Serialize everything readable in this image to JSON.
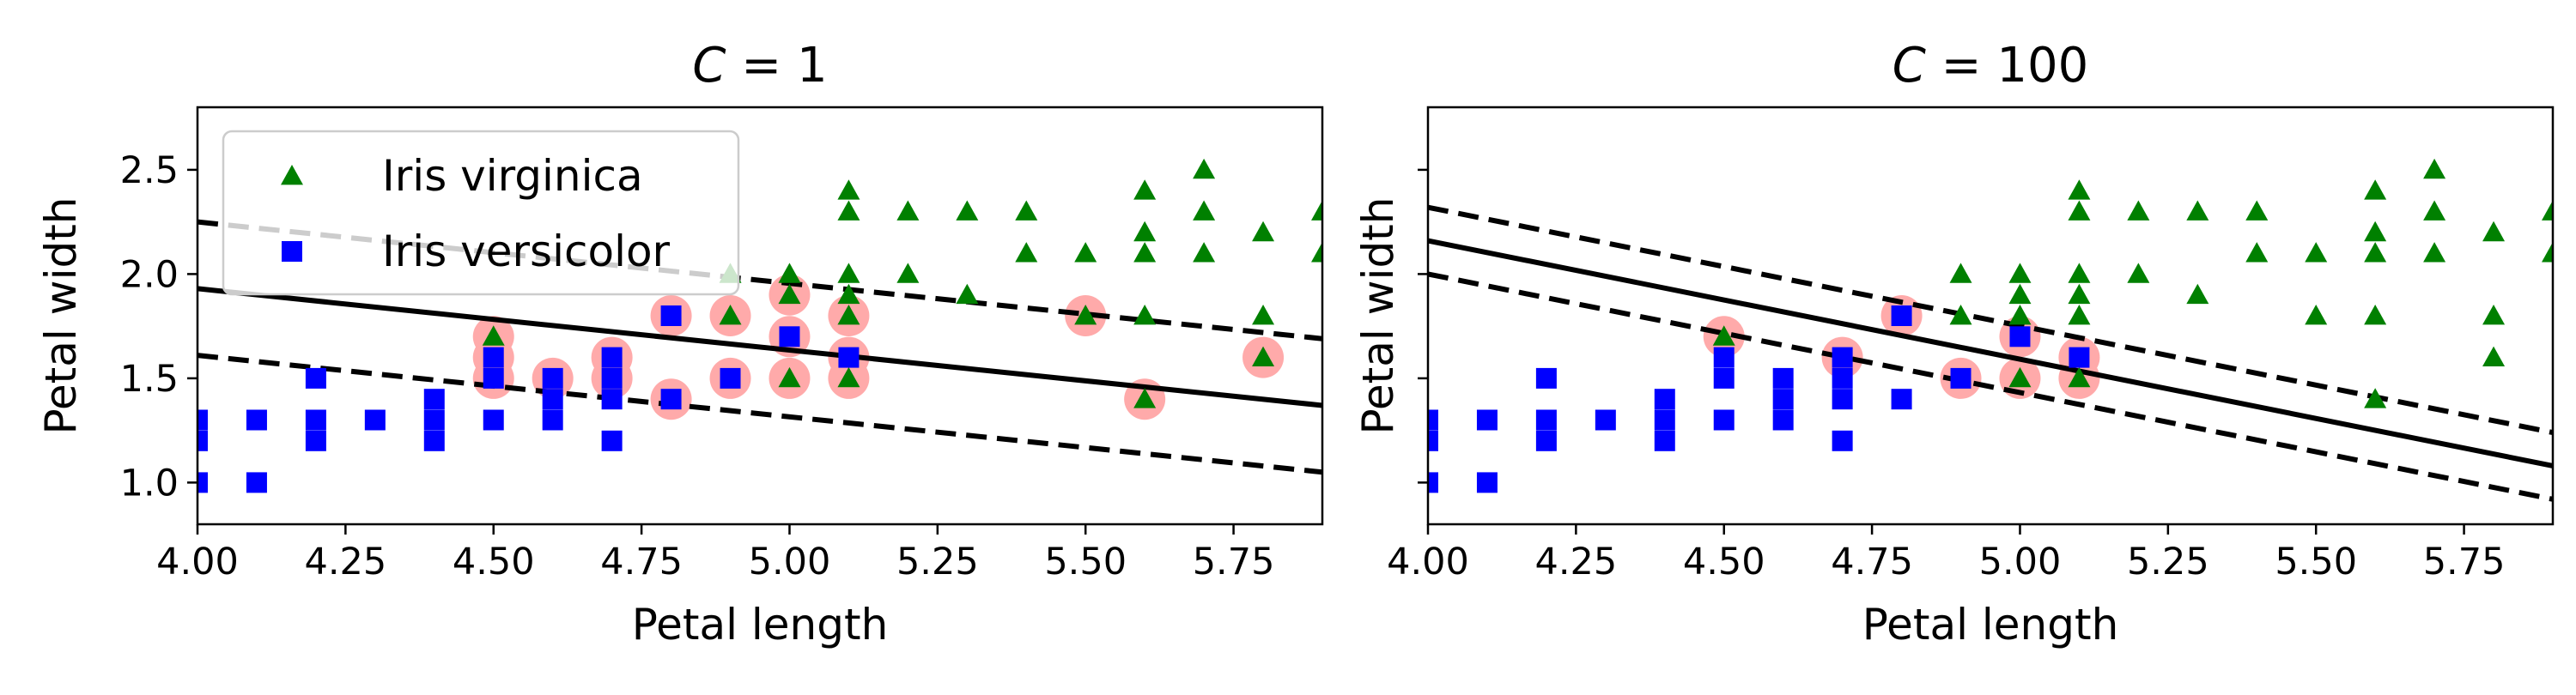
{
  "chart_data": [
    {
      "type": "scatter",
      "title": "C = 1",
      "title_var": "C",
      "title_value": "1",
      "xlabel": "Petal length",
      "ylabel": "Petal width",
      "xlim": [
        4.0,
        5.9
      ],
      "ylim": [
        0.8,
        2.8
      ],
      "xticks": [
        4.0,
        4.25,
        4.5,
        4.75,
        5.0,
        5.25,
        5.5,
        5.75
      ],
      "xtick_labels": [
        "4.00",
        "4.25",
        "4.50",
        "4.75",
        "5.00",
        "5.25",
        "5.50",
        "5.75"
      ],
      "yticks": [
        1.0,
        1.5,
        2.0,
        2.5
      ],
      "ytick_labels": [
        "1.0",
        "1.5",
        "2.0",
        "2.5"
      ],
      "legend": {
        "placement": "upper-left",
        "entries": [
          {
            "label": "Iris virginica",
            "marker": "triangle",
            "color": "#008000"
          },
          {
            "label": "Iris versicolor",
            "marker": "square",
            "color": "#0000ff"
          }
        ]
      },
      "series": [
        {
          "name": "Iris virginica",
          "marker": "triangle",
          "color": "#008000",
          "points": [
            [
              4.5,
              1.7
            ],
            [
              4.9,
              1.8
            ],
            [
              4.9,
              2.0
            ],
            [
              5.0,
              1.5
            ],
            [
              5.0,
              2.0
            ],
            [
              5.0,
              1.9
            ],
            [
              5.1,
              1.5
            ],
            [
              5.1,
              1.8
            ],
            [
              5.1,
              1.9
            ],
            [
              5.1,
              2.0
            ],
            [
              5.1,
              2.3
            ],
            [
              5.1,
              2.4
            ],
            [
              5.2,
              2.0
            ],
            [
              5.2,
              2.3
            ],
            [
              5.3,
              1.9
            ],
            [
              5.3,
              2.3
            ],
            [
              5.4,
              2.1
            ],
            [
              5.4,
              2.3
            ],
            [
              5.5,
              1.8
            ],
            [
              5.5,
              2.1
            ],
            [
              5.6,
              1.4
            ],
            [
              5.6,
              1.8
            ],
            [
              5.6,
              2.1
            ],
            [
              5.6,
              2.2
            ],
            [
              5.6,
              2.4
            ],
            [
              5.7,
              2.1
            ],
            [
              5.7,
              2.3
            ],
            [
              5.7,
              2.5
            ],
            [
              5.8,
              1.6
            ],
            [
              5.8,
              1.8
            ],
            [
              5.8,
              2.2
            ],
            [
              5.9,
              2.1
            ],
            [
              5.9,
              2.3
            ]
          ]
        },
        {
          "name": "Iris versicolor",
          "marker": "square",
          "color": "#0000ff",
          "points": [
            [
              4.0,
              1.0
            ],
            [
              4.0,
              1.2
            ],
            [
              4.0,
              1.3
            ],
            [
              4.1,
              1.0
            ],
            [
              4.1,
              1.3
            ],
            [
              4.2,
              1.2
            ],
            [
              4.2,
              1.3
            ],
            [
              4.2,
              1.5
            ],
            [
              4.3,
              1.3
            ],
            [
              4.4,
              1.2
            ],
            [
              4.4,
              1.3
            ],
            [
              4.4,
              1.4
            ],
            [
              4.5,
              1.3
            ],
            [
              4.5,
              1.5
            ],
            [
              4.5,
              1.6
            ],
            [
              4.6,
              1.3
            ],
            [
              4.6,
              1.4
            ],
            [
              4.6,
              1.5
            ],
            [
              4.7,
              1.2
            ],
            [
              4.7,
              1.4
            ],
            [
              4.7,
              1.5
            ],
            [
              4.7,
              1.6
            ],
            [
              4.8,
              1.4
            ],
            [
              4.8,
              1.8
            ],
            [
              4.9,
              1.5
            ],
            [
              5.0,
              1.7
            ],
            [
              5.1,
              1.6
            ]
          ]
        }
      ],
      "support_vectors": [
        [
          4.5,
          1.5
        ],
        [
          4.5,
          1.6
        ],
        [
          4.5,
          1.7
        ],
        [
          4.6,
          1.5
        ],
        [
          4.7,
          1.5
        ],
        [
          4.7,
          1.6
        ],
        [
          4.8,
          1.4
        ],
        [
          4.8,
          1.8
        ],
        [
          4.9,
          1.5
        ],
        [
          4.9,
          1.8
        ],
        [
          5.0,
          1.5
        ],
        [
          5.0,
          1.7
        ],
        [
          5.0,
          1.9
        ],
        [
          5.1,
          1.5
        ],
        [
          5.1,
          1.6
        ],
        [
          5.1,
          1.8
        ],
        [
          5.5,
          1.8
        ],
        [
          5.6,
          1.4
        ],
        [
          5.8,
          1.6
        ]
      ],
      "support_vector_color": "#ffaaaa",
      "decision_boundary": [
        [
          4.0,
          1.93
        ],
        [
          5.9,
          1.37
        ]
      ],
      "margin_upper": [
        [
          4.0,
          2.25
        ],
        [
          5.9,
          1.69
        ]
      ],
      "margin_lower": [
        [
          4.0,
          1.61
        ],
        [
          5.9,
          1.05
        ]
      ]
    },
    {
      "type": "scatter",
      "title": "C = 100",
      "title_var": "C",
      "title_value": "100",
      "xlabel": "Petal length",
      "ylabel": "Petal width",
      "xlim": [
        4.0,
        5.9
      ],
      "ylim": [
        0.8,
        2.8
      ],
      "xticks": [
        4.0,
        4.25,
        4.5,
        4.75,
        5.0,
        5.25,
        5.5,
        5.75
      ],
      "xtick_labels": [
        "4.00",
        "4.25",
        "4.50",
        "4.75",
        "5.00",
        "5.25",
        "5.50",
        "5.75"
      ],
      "yticks": [
        1.0,
        1.5,
        2.0,
        2.5
      ],
      "ytick_labels": [],
      "series": [
        {
          "name": "Iris virginica",
          "marker": "triangle",
          "color": "#008000",
          "points": [
            [
              4.5,
              1.7
            ],
            [
              4.9,
              1.8
            ],
            [
              4.9,
              2.0
            ],
            [
              5.0,
              1.5
            ],
            [
              5.0,
              1.8
            ],
            [
              5.0,
              1.9
            ],
            [
              5.0,
              2.0
            ],
            [
              5.1,
              1.5
            ],
            [
              5.1,
              1.8
            ],
            [
              5.1,
              1.9
            ],
            [
              5.1,
              2.0
            ],
            [
              5.1,
              2.3
            ],
            [
              5.1,
              2.4
            ],
            [
              5.2,
              2.0
            ],
            [
              5.2,
              2.3
            ],
            [
              5.3,
              1.9
            ],
            [
              5.3,
              2.3
            ],
            [
              5.4,
              2.1
            ],
            [
              5.4,
              2.3
            ],
            [
              5.5,
              1.8
            ],
            [
              5.5,
              2.1
            ],
            [
              5.6,
              1.4
            ],
            [
              5.6,
              1.8
            ],
            [
              5.6,
              2.1
            ],
            [
              5.6,
              2.2
            ],
            [
              5.6,
              2.4
            ],
            [
              5.7,
              2.1
            ],
            [
              5.7,
              2.3
            ],
            [
              5.7,
              2.5
            ],
            [
              5.8,
              1.6
            ],
            [
              5.8,
              1.8
            ],
            [
              5.8,
              2.2
            ],
            [
              5.9,
              2.1
            ],
            [
              5.9,
              2.3
            ]
          ]
        },
        {
          "name": "Iris versicolor",
          "marker": "square",
          "color": "#0000ff",
          "points": [
            [
              4.0,
              1.0
            ],
            [
              4.0,
              1.2
            ],
            [
              4.0,
              1.3
            ],
            [
              4.1,
              1.0
            ],
            [
              4.1,
              1.3
            ],
            [
              4.2,
              1.2
            ],
            [
              4.2,
              1.3
            ],
            [
              4.2,
              1.5
            ],
            [
              4.3,
              1.3
            ],
            [
              4.4,
              1.2
            ],
            [
              4.4,
              1.3
            ],
            [
              4.4,
              1.4
            ],
            [
              4.5,
              1.3
            ],
            [
              4.5,
              1.5
            ],
            [
              4.5,
              1.6
            ],
            [
              4.6,
              1.3
            ],
            [
              4.6,
              1.4
            ],
            [
              4.6,
              1.5
            ],
            [
              4.7,
              1.2
            ],
            [
              4.7,
              1.4
            ],
            [
              4.7,
              1.5
            ],
            [
              4.7,
              1.6
            ],
            [
              4.8,
              1.4
            ],
            [
              4.8,
              1.8
            ],
            [
              4.9,
              1.5
            ],
            [
              5.0,
              1.7
            ],
            [
              5.1,
              1.6
            ]
          ]
        }
      ],
      "support_vectors": [
        [
          4.5,
          1.7
        ],
        [
          4.7,
          1.6
        ],
        [
          4.8,
          1.8
        ],
        [
          4.9,
          1.5
        ],
        [
          5.0,
          1.5
        ],
        [
          5.0,
          1.7
        ],
        [
          5.1,
          1.5
        ],
        [
          5.1,
          1.6
        ]
      ],
      "support_vector_color": "#ffaaaa",
      "decision_boundary": [
        [
          4.0,
          2.16
        ],
        [
          5.9,
          1.08
        ]
      ],
      "margin_upper": [
        [
          4.0,
          2.32
        ],
        [
          5.9,
          1.24
        ]
      ],
      "margin_lower": [
        [
          4.0,
          2.0
        ],
        [
          5.9,
          0.92
        ]
      ]
    }
  ]
}
